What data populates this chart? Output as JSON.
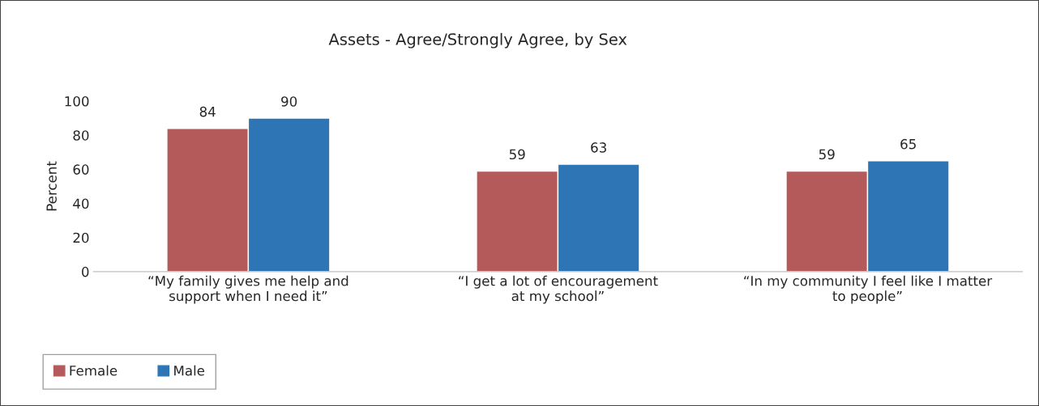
{
  "chart_data": {
    "type": "bar",
    "title": "Assets - Agree/Strongly Agree, by Sex",
    "ylabel": "Percent",
    "categories": [
      "“My family gives me help and\nsupport when I need it”",
      "“I get a lot of encouragement\nat my school”",
      "“In my community I feel like I matter\nto people”"
    ],
    "series": [
      {
        "name": "Female",
        "color": "#b55a5a",
        "values": [
          84,
          59,
          59
        ]
      },
      {
        "name": "Male",
        "color": "#2e75b6",
        "values": [
          90,
          63,
          65
        ]
      }
    ],
    "ylim": [
      0,
      100
    ],
    "yticks": [
      0,
      20,
      40,
      60,
      80,
      100
    ],
    "data_labels": true,
    "grid": false,
    "legend": "bottom left"
  }
}
